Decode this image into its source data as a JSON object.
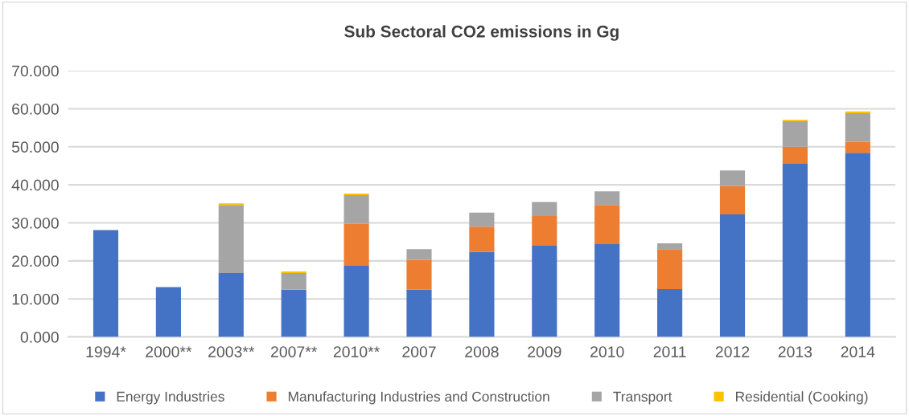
{
  "chart_data": {
    "type": "bar",
    "title": "Sub Sectoral CO2 emissions in Gg",
    "stacked": true,
    "categories": [
      "1994*",
      "2000**",
      "2003**",
      "2007**",
      "2010**",
      "2007",
      "2008",
      "2009",
      "2010",
      "2011",
      "2012",
      "2013",
      "2014"
    ],
    "series": [
      {
        "name": "Energy Industries",
        "color": "#4472c4",
        "values": [
          28.1,
          13.1,
          16.8,
          12.4,
          18.7,
          12.4,
          22.4,
          24.0,
          24.4,
          12.6,
          32.2,
          45.5,
          48.4
        ]
      },
      {
        "name": "Manufacturing Industries and Construction",
        "color": "#ed7d31",
        "values": [
          null,
          null,
          null,
          null,
          11.1,
          7.9,
          6.6,
          7.8,
          10.3,
          10.5,
          7.5,
          4.5,
          2.9
        ]
      },
      {
        "name": "Transport",
        "color": "#a5a5a5",
        "values": [
          null,
          null,
          17.9,
          4.4,
          7.5,
          2.8,
          3.7,
          3.7,
          3.6,
          1.5,
          4.1,
          6.7,
          7.5
        ]
      },
      {
        "name": "Residential (Cooking)",
        "color": "#ffc000",
        "values": [
          null,
          null,
          0.4,
          0.4,
          0.4,
          null,
          null,
          null,
          null,
          null,
          null,
          0.4,
          0.5
        ]
      }
    ],
    "ylim": [
      0,
      70
    ],
    "yticks": [
      {
        "value": 0,
        "label": "0.000"
      },
      {
        "value": 10,
        "label": "10.000"
      },
      {
        "value": 20,
        "label": "20.000"
      },
      {
        "value": 30,
        "label": "30.000"
      },
      {
        "value": 40,
        "label": "40.000"
      },
      {
        "value": 50,
        "label": "50.000"
      },
      {
        "value": 60,
        "label": "60.000"
      },
      {
        "value": 70,
        "label": "70.000"
      }
    ],
    "grid": "y",
    "legend": "bottom"
  }
}
